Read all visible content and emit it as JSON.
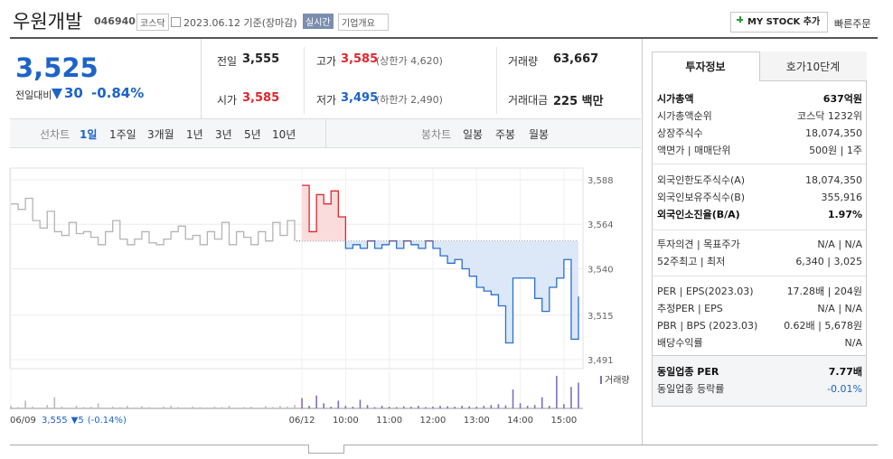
{
  "header": {
    "name": "우원개발",
    "code": "046940",
    "market": "코스닥",
    "date": "2023.06.12 기준(장마감)",
    "realtime": "실시간",
    "overview": "기업개요",
    "mystock": "MY STOCK 추가",
    "quick_order": "빠른주문"
  },
  "price": {
    "current": "3,525",
    "change_label": "전일대비",
    "change": "30",
    "change_pct": "-0.84%"
  },
  "stats": [
    [
      "전일",
      "3,555"
    ],
    [
      "고가",
      "3,585",
      "(상한가 4,620)"
    ],
    [
      "거래량",
      "63,667"
    ],
    [
      "시가",
      "3,585"
    ],
    [
      "저가",
      "3,495",
      "(하한가 2,490)"
    ],
    [
      "거래대금",
      "225 백만"
    ]
  ],
  "periods": {
    "label": "선차트",
    "items": [
      "1일",
      "1주일",
      "3개월",
      "1년",
      "3년",
      "5년",
      "10년"
    ],
    "candle_label": "봉차트",
    "candle_items": [
      "일봉",
      "주봉",
      "월봉"
    ]
  },
  "prev_note": {
    "price": "3,555",
    "change": "5",
    "pct": "(-0.14%)"
  },
  "volume_label": "거래량",
  "chart_data": [
    {
      "type": "line",
      "categories": [
        "06/09",
        null,
        null,
        null,
        null,
        null,
        null,
        null,
        null,
        null,
        null,
        null,
        null,
        null,
        null,
        null,
        null,
        null,
        null,
        null,
        null,
        null,
        null,
        null,
        null,
        null,
        null,
        null,
        null,
        null,
        null,
        null,
        null,
        null,
        null,
        null,
        null,
        null,
        null,
        null,
        "06/12",
        null,
        null,
        null,
        null,
        null,
        "10:00",
        null,
        null,
        null,
        null,
        null,
        "11:00",
        null,
        null,
        null,
        null,
        null,
        "12:00",
        null,
        null,
        null,
        null,
        null,
        "13:00",
        null,
        null,
        null,
        null,
        null,
        "14:00",
        null,
        null,
        null,
        null,
        null,
        "15:00",
        null,
        null
      ],
      "ylim": [
        3491,
        3588
      ],
      "yticks": [
        {
          "value": 3588,
          "label": "3,588"
        },
        {
          "value": 3564,
          "label": "3,564"
        },
        {
          "value": 3540,
          "label": "3,540"
        },
        {
          "value": 3515,
          "label": "3,515"
        },
        {
          "value": 3491,
          "label": "3,491"
        }
      ],
      "baseline": 3555,
      "grid": true,
      "series": [
        {
          "color": "#b4b4b4",
          "values": [
            3575,
            3572,
            3578,
            3566,
            3562,
            3571,
            3560,
            3558,
            3565,
            3559,
            3560,
            3557,
            3553,
            3560,
            3566,
            3556,
            3553,
            3556,
            3560,
            3554,
            3553,
            3556,
            3560,
            3563,
            3556,
            3558,
            3553,
            3560,
            3556,
            3565,
            3553,
            3560,
            3557,
            3553,
            3560,
            3555,
            3565,
            3558,
            3566,
            3555,
            null,
            null,
            null,
            null,
            null,
            null,
            null,
            null,
            null,
            null,
            null,
            null,
            null,
            null,
            null,
            null,
            null,
            null,
            null,
            null,
            null,
            null,
            null,
            null,
            null,
            null,
            null,
            null,
            null,
            null,
            null,
            null,
            null,
            null,
            null,
            null,
            null,
            null,
            null
          ]
        },
        {
          "color": "#2b6fcf",
          "up_color": "#e3262c",
          "fill": "#dce8f7",
          "up_fill": "#fbdcdc",
          "values": [
            null,
            null,
            null,
            null,
            null,
            null,
            null,
            null,
            null,
            null,
            null,
            null,
            null,
            null,
            null,
            null,
            null,
            null,
            null,
            null,
            null,
            null,
            null,
            null,
            null,
            null,
            null,
            null,
            null,
            null,
            null,
            null,
            null,
            null,
            null,
            null,
            null,
            null,
            null,
            null,
            3585,
            3560,
            3580,
            3575,
            3582,
            3568,
            3551,
            3553,
            3551,
            3555,
            3551,
            3553,
            3555,
            3551,
            3555,
            3553,
            3551,
            3555,
            3551,
            3547,
            3543,
            3545,
            3540,
            3536,
            3530,
            3528,
            3526,
            3520,
            3500,
            3535,
            3535,
            3535,
            3524,
            3517,
            3530,
            3535,
            3545,
            3502,
            3525
          ]
        }
      ]
    },
    {
      "type": "bar",
      "ylim": [
        0,
        4000
      ],
      "series": [
        {
          "color": "#b9b9c4",
          "values": [
            300,
            150,
            900,
            200,
            100,
            400,
            1300,
            200,
            100,
            300,
            150,
            200,
            600,
            100,
            200,
            150,
            300,
            100,
            250,
            150,
            100,
            200,
            300,
            150,
            100,
            200,
            150,
            100,
            200,
            150,
            300,
            100,
            150,
            200,
            100,
            250,
            150,
            300,
            200,
            400,
            null,
            null,
            null,
            null,
            null,
            null,
            null,
            null,
            null,
            null,
            null,
            null,
            null,
            null,
            null,
            null,
            null,
            null,
            null,
            null,
            null,
            null,
            null,
            null,
            null,
            null,
            null,
            null,
            null,
            null,
            null,
            null,
            null,
            null,
            null,
            null,
            null,
            null,
            null
          ]
        },
        {
          "color": "#7e6fc2",
          "values": [
            null,
            null,
            null,
            null,
            null,
            null,
            null,
            null,
            null,
            null,
            null,
            null,
            null,
            null,
            null,
            null,
            null,
            null,
            null,
            null,
            null,
            null,
            null,
            null,
            null,
            null,
            null,
            null,
            null,
            null,
            null,
            null,
            null,
            null,
            null,
            null,
            null,
            null,
            null,
            null,
            1200,
            300,
            1500,
            600,
            200,
            900,
            300,
            200,
            1000,
            400,
            150,
            300,
            200,
            150,
            250,
            200,
            300,
            150,
            200,
            300,
            250,
            200,
            300,
            250,
            200,
            300,
            400,
            500,
            350,
            2200,
            600,
            300,
            400,
            1300,
            300,
            3800,
            500,
            2500,
            3000
          ]
        }
      ]
    }
  ],
  "side": {
    "tabs": [
      "투자정보",
      "호가10단계"
    ],
    "sections": [
      [
        [
          "시가총액",
          "637억원"
        ],
        [
          "시가총액순위",
          "코스닥 1232위"
        ],
        [
          "상장주식수",
          "18,074,350"
        ],
        [
          "액면가 | 매매단위",
          "500원 | 1주"
        ]
      ],
      [
        [
          "외국인한도주식수(A)",
          "18,074,350"
        ],
        [
          "외국인보유주식수(B)",
          "355,916"
        ],
        [
          "외국인소진율(B/A)",
          "1.97%"
        ]
      ],
      [
        [
          "투자의견 | 목표주가",
          "N/A | N/A"
        ],
        [
          "52주최고 | 최저",
          "6,340 | 3,025"
        ]
      ],
      [
        [
          "PER | EPS(2023.03)",
          "17.28배 | 204원"
        ],
        [
          "추정PER | EPS",
          "N/A | N/A"
        ],
        [
          "PBR | BPS (2023.03)",
          "0.62배 | 5,678원"
        ],
        [
          "배당수익률",
          "N/A"
        ]
      ],
      [
        [
          "동일업종 PER",
          "7.77배"
        ],
        [
          "동일업종 등락률",
          "-0.01%"
        ]
      ]
    ]
  }
}
